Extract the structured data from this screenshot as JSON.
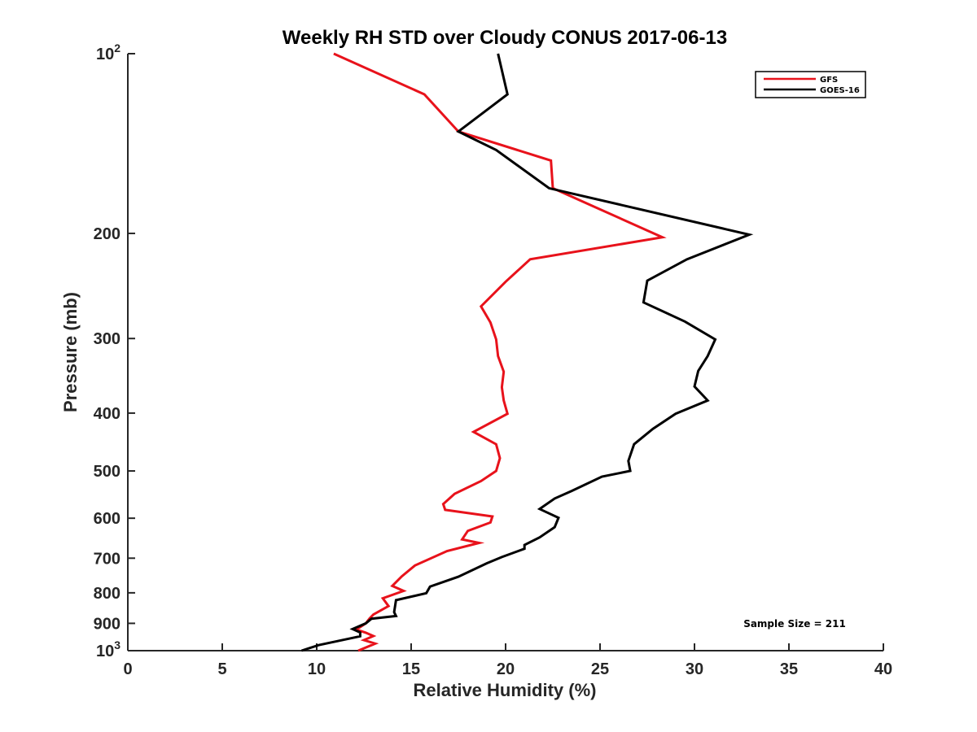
{
  "chart_data": {
    "type": "line",
    "title": "Weekly RH STD over Cloudy CONUS 2017-06-13",
    "xlabel": "Relative Humidity (%)",
    "ylabel": "Pressure (mb)",
    "xlim": [
      0,
      40
    ],
    "ylim": [
      100,
      1000
    ],
    "y_scale": "log",
    "y_reversed": true,
    "grid": false,
    "legend_position": "top-right",
    "x_ticks": [
      0,
      5,
      10,
      15,
      20,
      25,
      30,
      35,
      40
    ],
    "y_ticks": [
      {
        "value": 100,
        "base": "10",
        "exp": "2"
      },
      {
        "value": 200,
        "label": "200"
      },
      {
        "value": 300,
        "label": "300"
      },
      {
        "value": 400,
        "label": "400"
      },
      {
        "value": 500,
        "label": "500"
      },
      {
        "value": 600,
        "label": "600"
      },
      {
        "value": 700,
        "label": "700"
      },
      {
        "value": 800,
        "label": "800"
      },
      {
        "value": 900,
        "label": "900"
      },
      {
        "value": 1000,
        "base": "10",
        "exp": "3"
      }
    ],
    "annotations": [
      "Sample Size = 211"
    ],
    "series": [
      {
        "name": "GFS",
        "color": "#e8121b",
        "points": [
          [
            10.9,
            100
          ],
          [
            15.7,
            117
          ],
          [
            17.5,
            135
          ],
          [
            22.4,
            151
          ],
          [
            22.5,
            168
          ],
          [
            28.3,
            203
          ],
          [
            21.3,
            221
          ],
          [
            20.0,
            241
          ],
          [
            18.7,
            265
          ],
          [
            19.2,
            282
          ],
          [
            19.5,
            301
          ],
          [
            19.6,
            321
          ],
          [
            19.9,
            341
          ],
          [
            19.8,
            362
          ],
          [
            19.9,
            381
          ],
          [
            20.1,
            401
          ],
          [
            18.3,
            430
          ],
          [
            19.5,
            451
          ],
          [
            19.7,
            476
          ],
          [
            19.5,
            500
          ],
          [
            18.7,
            520
          ],
          [
            17.3,
            546
          ],
          [
            16.7,
            568
          ],
          [
            16.8,
            581
          ],
          [
            19.3,
            596
          ],
          [
            19.2,
            610
          ],
          [
            18.0,
            630
          ],
          [
            17.7,
            651
          ],
          [
            18.6,
            660
          ],
          [
            16.9,
            681
          ],
          [
            15.2,
            720
          ],
          [
            14.5,
            751
          ],
          [
            14.0,
            779
          ],
          [
            14.6,
            794
          ],
          [
            13.5,
            817
          ],
          [
            13.8,
            842
          ],
          [
            13.0,
            870
          ],
          [
            12.8,
            883
          ],
          [
            12.6,
            900
          ],
          [
            12.1,
            922
          ],
          [
            12.6,
            933
          ],
          [
            13.0,
            945
          ],
          [
            12.5,
            960
          ],
          [
            13.1,
            973
          ],
          [
            12.2,
            1000
          ]
        ]
      },
      {
        "name": "GOES-16",
        "color": "#000000",
        "points": [
          [
            19.6,
            100
          ],
          [
            20.1,
            117
          ],
          [
            17.5,
            135
          ],
          [
            19.5,
            145
          ],
          [
            22.3,
            168
          ],
          [
            32.9,
            201
          ],
          [
            29.6,
            221
          ],
          [
            27.5,
            240
          ],
          [
            27.3,
            261
          ],
          [
            29.5,
            281
          ],
          [
            31.1,
            301
          ],
          [
            30.7,
            321
          ],
          [
            30.2,
            340
          ],
          [
            30.0,
            361
          ],
          [
            30.7,
            381
          ],
          [
            29.0,
            401
          ],
          [
            27.8,
            425
          ],
          [
            26.8,
            451
          ],
          [
            26.5,
            481
          ],
          [
            26.6,
            500
          ],
          [
            25.1,
            511
          ],
          [
            23.5,
            540
          ],
          [
            22.6,
            556
          ],
          [
            21.8,
            579
          ],
          [
            22.8,
            599
          ],
          [
            22.6,
            621
          ],
          [
            21.8,
            646
          ],
          [
            21.0,
            665
          ],
          [
            21.0,
            675
          ],
          [
            19.8,
            697
          ],
          [
            19.0,
            714
          ],
          [
            17.5,
            752
          ],
          [
            16.0,
            781
          ],
          [
            15.8,
            801
          ],
          [
            14.2,
            823
          ],
          [
            14.1,
            862
          ],
          [
            14.2,
            875
          ],
          [
            12.9,
            884
          ],
          [
            12.6,
            900
          ],
          [
            11.9,
            920
          ],
          [
            12.3,
            932
          ],
          [
            12.3,
            946
          ],
          [
            10.1,
            979
          ],
          [
            9.2,
            1000
          ]
        ]
      }
    ]
  }
}
